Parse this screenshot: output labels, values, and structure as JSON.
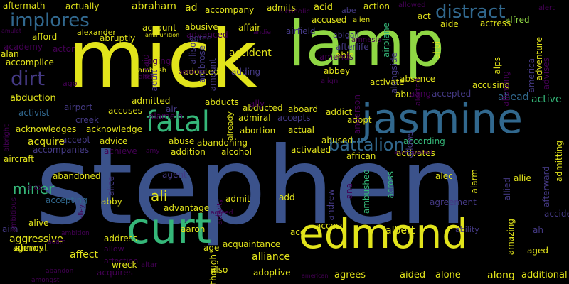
{
  "title": "",
  "palette": {
    "background": "#000000",
    "yellow": "#e2e41b",
    "lime": "#8fd744",
    "green": "#35b779",
    "teal": "#21918c",
    "steel": "#31688e",
    "blue": "#3b528b",
    "indigo": "#443983",
    "purple": "#440154"
  },
  "words": [
    "stephen",
    "mick",
    "lamp",
    "jasmine",
    "edmond",
    "curt",
    "fatal",
    "distract",
    "implores",
    "battalion",
    "dirt",
    "miner",
    "ali",
    "aftermath",
    "actually",
    "abraham",
    "ad",
    "accompany",
    "admits",
    "acid",
    "action",
    "allowed",
    "alert",
    "abe",
    "alcoholic",
    "act",
    "alfred",
    "amulet",
    "afford",
    "alexander",
    "abruptly",
    "account",
    "advanced",
    "affair",
    "andie",
    "accused",
    "alien",
    "aide",
    "actress",
    "academy",
    "actor",
    "abusive",
    "agree",
    "ammunition",
    "airfield",
    "abigail",
    "airplane",
    "adventure",
    "alan",
    "accomplice",
    "aging",
    "allison",
    "adopted",
    "accident",
    "able",
    "afterlife",
    "alibi",
    "ambush",
    "alter",
    "adding",
    "abbey",
    "align",
    "activate",
    "absence",
    "advises",
    "abduction",
    "ago",
    "admitted",
    "abducts",
    "abducted",
    "aboard",
    "addict",
    "accusing",
    "ahead",
    "active",
    "activist",
    "airport",
    "accuses",
    "air",
    "already",
    "admiral",
    "accepts",
    "adopt",
    "abu",
    "aang",
    "accepted",
    "creek",
    "acknowledges",
    "acknowledge",
    "abortion",
    "actual",
    "albright",
    "accompanies",
    "achieve",
    "accept",
    "advice",
    "acquire",
    "abuse",
    "abandoning",
    "abused",
    "according",
    "amy",
    "addition",
    "alcohol",
    "activated",
    "african",
    "activates",
    "aircraft",
    "abandoned",
    "agent",
    "alec",
    "allie",
    "admitting",
    "alex",
    "alice",
    "accepting",
    "abby",
    "advantage",
    "admit",
    "add",
    "alarm",
    "agreed",
    "ambushed",
    "agreement",
    "across",
    "afterward",
    "activity",
    "alive",
    "access",
    "aim",
    "aggressive",
    "address",
    "ace",
    "ah",
    "accidentally",
    "agency",
    "affect",
    "aaron",
    "age",
    "albert",
    "ability",
    "almost",
    "allow",
    "acquaintance",
    "alliance",
    "aged",
    "wreck",
    "altar",
    "also",
    "adoptive",
    "agrees",
    "aided",
    "alone",
    "along",
    "additional",
    "adam",
    "accompanied",
    "amongst",
    "abandon",
    "acquires",
    "affection",
    "afraid",
    "alamein",
    "adult",
    "agreeing",
    "ambrose",
    "amount",
    "amends",
    "anderson",
    "ally",
    "alongside",
    "allows",
    "alerted",
    "andrew",
    "ana",
    "alps",
    "allied",
    "alley",
    "ambition",
    "ambitious",
    "amazing",
    "although",
    "american",
    "america",
    "allowing",
    "amnesia",
    "alternate",
    "alpha",
    "amusement",
    "ancient",
    "always",
    "afterwards",
    "ambassador",
    "amid",
    "alias",
    "ambulance",
    "allen"
  ]
}
